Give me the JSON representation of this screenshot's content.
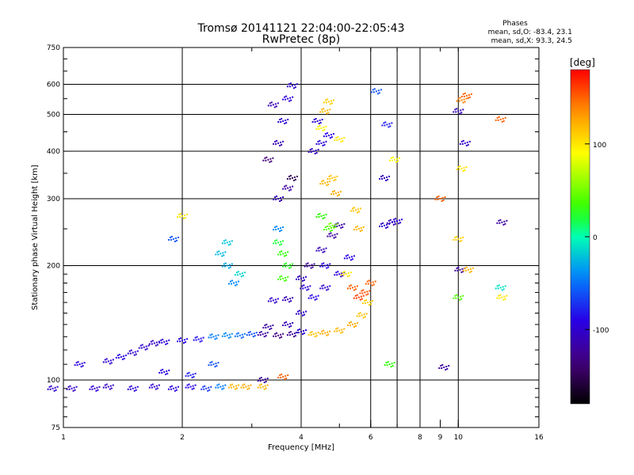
{
  "chart_data": {
    "type": "scatter",
    "title": "Tromsø 20141121 22:04:00-22:05:43",
    "subtitle": "RwPretec (8p)",
    "xlabel": "Frequency [MHz]",
    "ylabel": "Stationary phase Virtual Height [km]",
    "xscale": "log",
    "yscale": "log",
    "xlim": [
      1,
      16
    ],
    "ylim": [
      75,
      750
    ],
    "x_ticks": [
      1,
      2,
      4,
      6,
      8,
      9,
      10,
      16
    ],
    "x_tick_labels": [
      "1",
      "2",
      "4",
      "6",
      "8",
      "9",
      "10",
      "16"
    ],
    "x_gridlines": [
      2,
      4,
      6,
      7,
      8,
      10
    ],
    "y_ticks": [
      75,
      100,
      200,
      300,
      400,
      500,
      600,
      750
    ],
    "y_tick_labels": [
      "75",
      "100",
      "200",
      "300",
      "400",
      "500",
      "600",
      "750"
    ],
    "y_gridlines": [
      100,
      200,
      300,
      400,
      500,
      600
    ],
    "phase_stats": {
      "title": "Phases",
      "line_o": "mean, sd,O: -83.4, 23.1",
      "line_x": "mean, sd,X: 93.3, 24.5"
    },
    "colorbar": {
      "unit_label": "[deg]",
      "range": [
        -180,
        180
      ],
      "tick_values": [
        100,
        0,
        -100
      ],
      "tick_labels": [
        "100",
        "0",
        "-100"
      ]
    },
    "series": [
      {
        "kind": "traces",
        "points": [
          [
            0.94,
            95,
            -100
          ],
          [
            1.05,
            95,
            -105
          ],
          [
            1.2,
            95,
            -100
          ],
          [
            1.3,
            96,
            -105
          ],
          [
            1.5,
            95,
            -95
          ],
          [
            1.7,
            96,
            -100
          ],
          [
            1.9,
            95,
            -95
          ],
          [
            2.1,
            96,
            -90
          ],
          [
            2.3,
            95,
            -70
          ],
          [
            2.5,
            96,
            -45
          ],
          [
            2.7,
            96,
            120
          ],
          [
            2.9,
            96,
            125
          ],
          [
            3.2,
            96,
            120
          ],
          [
            1.1,
            110,
            -95
          ],
          [
            1.3,
            112,
            -100
          ],
          [
            1.4,
            115,
            -90
          ],
          [
            1.5,
            118,
            -100
          ],
          [
            1.6,
            122,
            -100
          ],
          [
            1.7,
            125,
            -105
          ],
          [
            1.8,
            126,
            -95
          ],
          [
            2.0,
            127,
            -90
          ],
          [
            2.2,
            128,
            -85
          ],
          [
            2.4,
            130,
            -45
          ],
          [
            2.6,
            131,
            -40
          ],
          [
            2.8,
            131,
            -50
          ],
          [
            3.0,
            132,
            -60
          ],
          [
            3.2,
            132,
            -120
          ],
          [
            3.5,
            131,
            -130
          ],
          [
            3.8,
            132,
            -125
          ],
          [
            4.0,
            134,
            -100
          ],
          [
            4.3,
            132,
            115
          ],
          [
            4.6,
            133,
            125
          ],
          [
            5.0,
            135,
            120
          ],
          [
            5.4,
            140,
            125
          ],
          [
            5.7,
            148,
            115
          ],
          [
            5.9,
            160,
            110
          ],
          [
            3.3,
            138,
            -120
          ],
          [
            3.7,
            140,
            -110
          ],
          [
            4.0,
            150,
            -100
          ],
          [
            4.3,
            165,
            -90
          ],
          [
            4.6,
            175,
            -100
          ],
          [
            5.0,
            190,
            -95
          ],
          [
            5.3,
            210,
            -90
          ],
          [
            4.1,
            175,
            -95
          ],
          [
            4.0,
            185,
            -105
          ],
          [
            4.2,
            200,
            -120
          ],
          [
            4.5,
            220,
            -110
          ],
          [
            4.8,
            240,
            -120
          ],
          [
            5.0,
            255,
            -115
          ],
          [
            4.6,
            200,
            -90
          ],
          [
            3.4,
            162,
            -100
          ],
          [
            3.7,
            163,
            -110
          ],
          [
            6.5,
            255,
            -100
          ],
          [
            6.8,
            260,
            -110
          ],
          [
            7.0,
            262,
            -100
          ],
          [
            2.6,
            230,
            -20
          ],
          [
            2.6,
            200,
            -30
          ],
          [
            2.7,
            180,
            -40
          ],
          [
            2.8,
            190,
            -15
          ],
          [
            2.5,
            215,
            -25
          ],
          [
            3.5,
            230,
            20
          ],
          [
            3.6,
            215,
            30
          ],
          [
            3.7,
            200,
            25
          ],
          [
            3.6,
            185,
            35
          ],
          [
            3.5,
            250,
            -40
          ],
          [
            3.5,
            300,
            -110
          ],
          [
            3.7,
            320,
            -120
          ],
          [
            3.8,
            340,
            -150
          ],
          [
            3.3,
            380,
            -135
          ],
          [
            3.5,
            420,
            -110
          ],
          [
            3.6,
            480,
            -100
          ],
          [
            3.7,
            550,
            -95
          ],
          [
            3.8,
            595,
            -100
          ],
          [
            3.4,
            530,
            -110
          ],
          [
            4.3,
            400,
            -105
          ],
          [
            4.5,
            420,
            -95
          ],
          [
            4.7,
            440,
            -90
          ],
          [
            4.4,
            480,
            -100
          ],
          [
            4.6,
            510,
            120
          ],
          [
            4.7,
            540,
            110
          ],
          [
            4.6,
            330,
            120
          ],
          [
            4.8,
            340,
            115
          ],
          [
            4.9,
            310,
            125
          ],
          [
            4.7,
            250,
            40
          ],
          [
            4.8,
            255,
            50
          ],
          [
            4.5,
            270,
            30
          ],
          [
            5.5,
            280,
            115
          ],
          [
            5.6,
            250,
            120
          ],
          [
            5.2,
            190,
            100
          ],
          [
            5.4,
            175,
            150
          ],
          [
            5.6,
            165,
            160
          ],
          [
            5.8,
            170,
            155
          ],
          [
            6.0,
            180,
            150
          ],
          [
            1.9,
            235,
            -60
          ],
          [
            2.0,
            270,
            100
          ],
          [
            1.8,
            105,
            -90
          ],
          [
            2.1,
            103,
            -80
          ],
          [
            2.4,
            110,
            -60
          ],
          [
            3.2,
            100,
            -120
          ],
          [
            3.6,
            102,
            150
          ],
          [
            4.5,
            460,
            95
          ],
          [
            5.0,
            430,
            100
          ],
          [
            6.2,
            575,
            -60
          ],
          [
            6.6,
            470,
            -80
          ],
          [
            6.9,
            380,
            90
          ],
          [
            6.5,
            340,
            -110
          ],
          [
            9.0,
            300,
            150
          ],
          [
            9.2,
            108,
            -120
          ],
          [
            10.0,
            510,
            -110
          ],
          [
            10.2,
            545,
            140
          ],
          [
            10.5,
            560,
            150
          ],
          [
            10.2,
            360,
            100
          ],
          [
            10.4,
            420,
            -100
          ],
          [
            10.0,
            235,
            110
          ],
          [
            10.1,
            195,
            -120
          ],
          [
            10.6,
            195,
            120
          ],
          [
            10.0,
            165,
            40
          ],
          [
            12.8,
            485,
            150
          ],
          [
            12.9,
            260,
            -120
          ],
          [
            12.8,
            175,
            -10
          ],
          [
            12.9,
            165,
            100
          ],
          [
            6.7,
            110,
            30
          ]
        ]
      }
    ]
  }
}
